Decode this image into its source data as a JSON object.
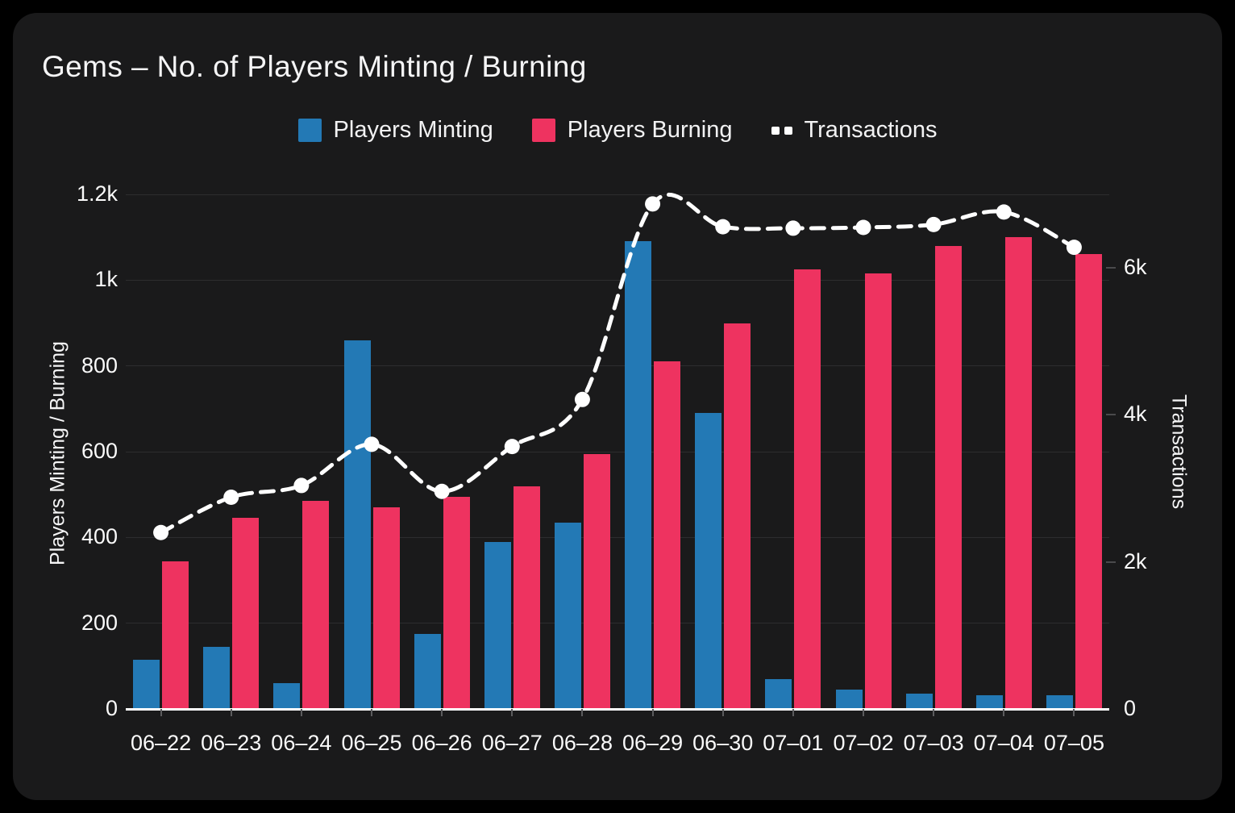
{
  "title": "Gems – No. of Players Minting / Burning",
  "legend": {
    "minting_label": "Players Minting",
    "burning_label": "Players Burning",
    "transactions_label": "Transactions"
  },
  "colors": {
    "page_bg": "#000000",
    "card_bg": "#1a1a1b",
    "grid": "#2d2d2f",
    "baseline": "#ffffff",
    "minting": "#2379b5",
    "burning": "#ee3360",
    "transactions": "#ffffff",
    "text": "#f5f5f6"
  },
  "chart_data": {
    "type": "bar",
    "subtype": "grouped bars with overlaid dashed line",
    "title": "Gems – No. of Players Minting / Burning",
    "categories": [
      "06–22",
      "06–23",
      "06–24",
      "06–25",
      "06–26",
      "06–27",
      "06–28",
      "06–29",
      "06–30",
      "07–01",
      "07–02",
      "07–03",
      "07–04",
      "07–05"
    ],
    "series": [
      {
        "name": "Players Minting",
        "type": "bar",
        "axis": "left",
        "color": "#2379b5",
        "values": [
          115,
          145,
          60,
          860,
          175,
          390,
          435,
          1090,
          690,
          70,
          45,
          35,
          32,
          32
        ]
      },
      {
        "name": "Players Burning",
        "type": "bar",
        "axis": "left",
        "color": "#ee3360",
        "values": [
          345,
          445,
          485,
          470,
          495,
          520,
          595,
          810,
          900,
          1025,
          1015,
          1080,
          1100,
          1060
        ]
      },
      {
        "name": "Transactions",
        "type": "line",
        "axis": "right",
        "color": "#ffffff",
        "dashed": true,
        "values": [
          2400,
          2880,
          3040,
          3600,
          2960,
          3570,
          4210,
          6870,
          6560,
          6540,
          6550,
          6590,
          6760,
          6280
        ]
      }
    ],
    "left_axis": {
      "label": "Players Minting / Burning",
      "tick_labels": [
        "0",
        "200",
        "400",
        "600",
        "800",
        "1k",
        "1.2k"
      ],
      "tick_values": [
        0,
        200,
        400,
        600,
        800,
        1000,
        1200
      ],
      "min": 0,
      "max": 1200
    },
    "right_axis": {
      "label": "Transactions",
      "tick_labels": [
        "0",
        "2k",
        "4k",
        "6k"
      ],
      "tick_values": [
        0,
        2000,
        4000,
        6000
      ],
      "min": 0,
      "max": 7000
    },
    "grid": "horizontal",
    "legend_position": "top"
  }
}
